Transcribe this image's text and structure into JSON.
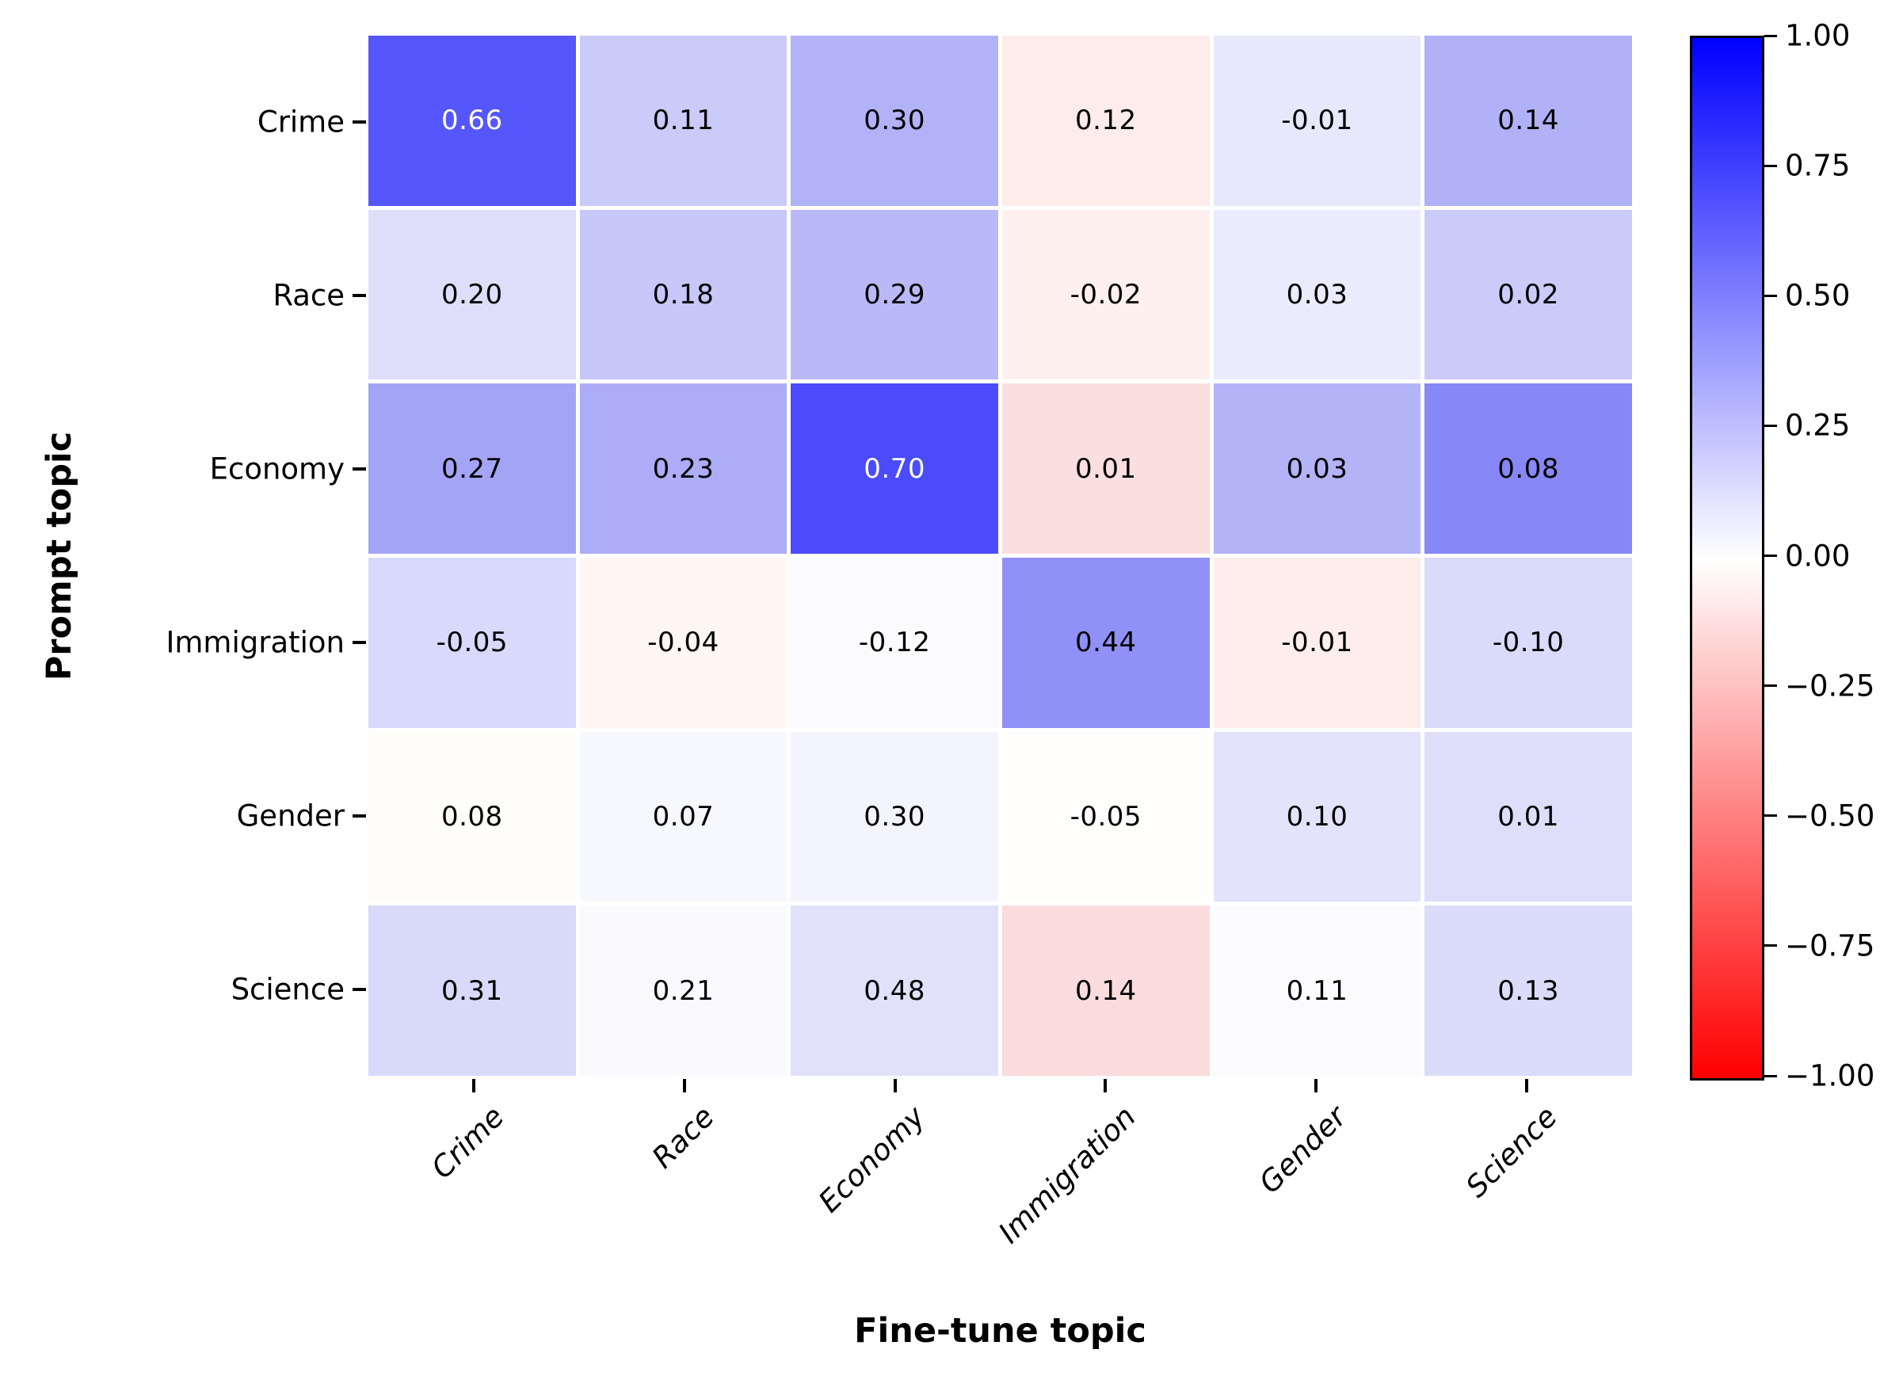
{
  "chart_data": {
    "type": "heatmap",
    "xlabel": "Fine-tune topic",
    "ylabel": "Prompt topic",
    "row_labels": [
      "Crime",
      "Race",
      "Economy",
      "Immigration",
      "Gender",
      "Science"
    ],
    "col_labels": [
      "Crime",
      "Race",
      "Economy",
      "Immigration",
      "Gender",
      "Science"
    ],
    "values": [
      [
        0.66,
        0.11,
        0.3,
        0.12,
        -0.01,
        0.14
      ],
      [
        0.2,
        0.18,
        0.29,
        -0.02,
        0.03,
        0.02
      ],
      [
        0.27,
        0.23,
        0.7,
        0.01,
        0.03,
        0.08
      ],
      [
        -0.05,
        -0.04,
        -0.12,
        0.44,
        -0.01,
        -0.1
      ],
      [
        0.08,
        0.07,
        0.3,
        -0.05,
        0.1,
        0.01
      ],
      [
        0.31,
        0.21,
        0.48,
        0.14,
        0.11,
        0.13
      ]
    ],
    "cell_colors": [
      [
        "#5656fd",
        "#cbcbfa",
        "#b2b2f8",
        "#fdecea",
        "#e8e8fc",
        "#b1b1f7"
      ],
      [
        "#dedefb",
        "#c7c7fa",
        "#b9b9f8",
        "#fdf0ee",
        "#ebebfd",
        "#cbcbfa"
      ],
      [
        "#a4a4f7",
        "#adadf7",
        "#4b4bfb",
        "#fbdede",
        "#b3b3f8",
        "#8787f7"
      ],
      [
        "#d9d9fb",
        "#fdf6f3",
        "#fbfbfe",
        "#9090f7",
        "#fdeeeb",
        "#dadafb"
      ],
      [
        "#fffdf9",
        "#f7f7fe",
        "#f4f4fe",
        "#fffefc",
        "#e3e3fc",
        "#dedefb"
      ],
      [
        "#d9d9fa",
        "#fafafe",
        "#e1e1fb",
        "#fadcdc",
        "#fbfbfe",
        "#dbdbfa"
      ]
    ],
    "grid": true,
    "legend_position": "right",
    "colorbar": {
      "vmin": -1.0,
      "vmax": 1.0,
      "tick_labels": [
        "1.00",
        "0.75",
        "0.50",
        "0.25",
        "0.00",
        "−0.25",
        "−0.50",
        "−0.75",
        "−1.00"
      ],
      "top_color": "#0000ff",
      "mid_color": "#ffffff",
      "bottom_color": "#ff0000"
    },
    "background_color": "#ffffff",
    "annotation_text_dark": "#000000",
    "annotation_text_light": "#ffffff"
  }
}
